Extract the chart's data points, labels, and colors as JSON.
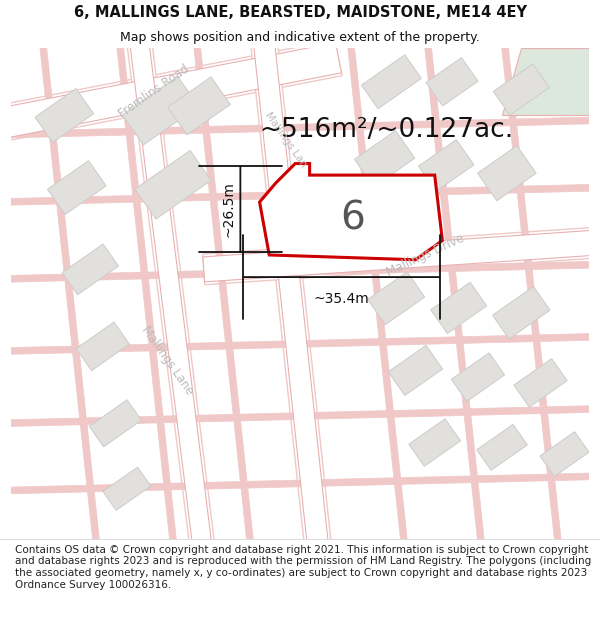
{
  "title": "6, MALLINGS LANE, BEARSTED, MAIDSTONE, ME14 4EY",
  "subtitle": "Map shows position and indicative extent of the property.",
  "area_text": "~516m²/~0.127ac.",
  "width_label": "~35.4m",
  "height_label": "~26.5m",
  "number_label": "6",
  "footer": "Contains OS data © Crown copyright and database right 2021. This information is subject to Crown copyright and database rights 2023 and is reproduced with the permission of HM Land Registry. The polygons (including the associated geometry, namely x, y co-ordinates) are subject to Crown copyright and database rights 2023 Ordnance Survey 100026316.",
  "map_bg": "#f5f4f2",
  "road_fill": "#ffffff",
  "road_edge": "#e8b0b0",
  "road_edge2": "#f0c8c8",
  "building_fill": "#e2e0dc",
  "building_edge": "#cccccc",
  "plot_color": "#cc0000",
  "plot_fill": "#ffffff",
  "road_text_color": "#bbbbbb",
  "dim_color": "#111111",
  "green_fill": "#dce8dc",
  "title_color": "#111111",
  "footer_color": "#222222",
  "footer_fontsize": 7.5,
  "title_fontsize": 10.5,
  "subtitle_fontsize": 9.0,
  "area_fontsize": 19,
  "number_fontsize": 28,
  "dim_fontsize": 10,
  "road_label_fontsize": 8.5
}
